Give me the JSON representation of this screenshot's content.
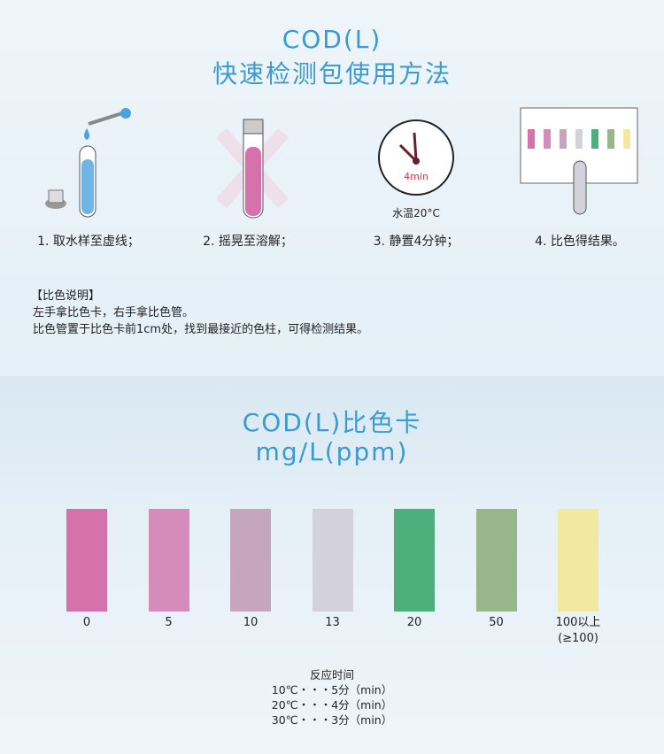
{
  "header": {
    "title_line1": "COD(L)",
    "title_line2": "快速检测包使用方法"
  },
  "steps": [
    {
      "label": "1. 取水样至虚线；"
    },
    {
      "label": "2. 摇晃至溶解；"
    },
    {
      "label": "3. 静置4分钟；",
      "timer": "4min",
      "caption": "水温20°C"
    },
    {
      "label": "4. 比色得结果。"
    }
  ],
  "instructions": {
    "heading": "【比色说明】",
    "lines": [
      "左手拿比色卡，右手拿比色管。",
      "比色管置于比色卡前1cm处，找到最接近的色柱，可得检测结果。"
    ]
  },
  "chart": {
    "title_line1": "COD(L)比色卡",
    "title_line2": "mg/L(ppm)",
    "swatches": [
      {
        "label": "0",
        "color": "#d672ab"
      },
      {
        "label": "5",
        "color": "#d58cbb"
      },
      {
        "label": "10",
        "color": "#c6a6bd"
      },
      {
        "label": "13",
        "color": "#d3d1db"
      },
      {
        "label": "20",
        "color": "#4db07c"
      },
      {
        "label": "50",
        "color": "#97b78a"
      },
      {
        "label": "100以上",
        "sub": "(≥100)",
        "color": "#f3e8a1"
      }
    ]
  },
  "reaction_time": {
    "heading": "反应时间",
    "rows": [
      "10℃・・・5分（min）",
      "20℃・・・4分（min）",
      "30℃・・・3分（min）"
    ]
  },
  "colors": {
    "accent": "#3a9ad2",
    "timer": "#e0303a"
  }
}
